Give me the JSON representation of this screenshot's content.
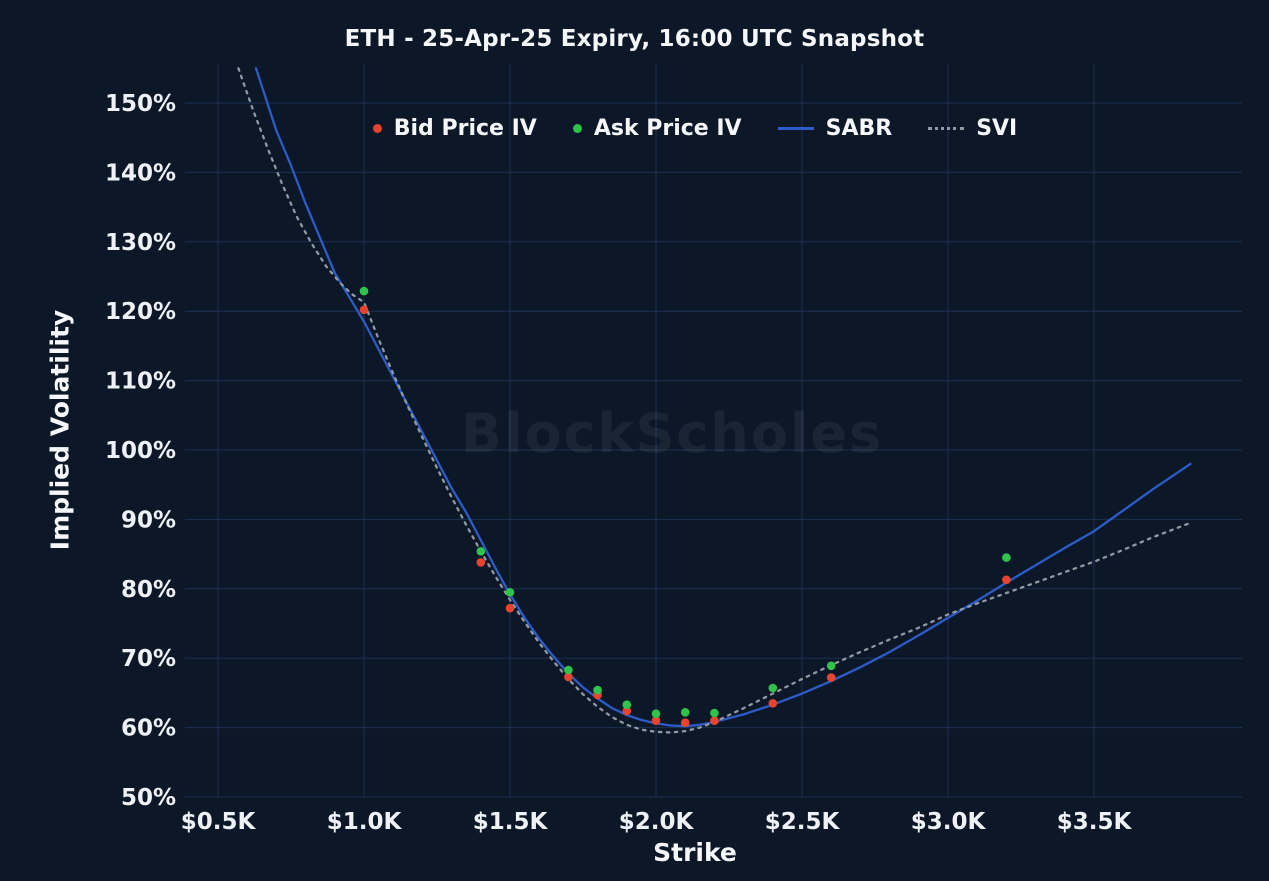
{
  "title": "ETH - 25-Apr-25 Expiry, 16:00 UTC Snapshot",
  "watermark": "BlockScholes",
  "axes": {
    "x_label": "Strike",
    "y_label": "Implied Volatility"
  },
  "colors": {
    "background": "#0c1828",
    "grid": "#1d3152",
    "bid": "#e8432e",
    "ask": "#2fc34b",
    "sabr": "#2d5cc8",
    "svi": "#9198a1",
    "text": "#f5f7fa",
    "watermark": "#ffffff"
  },
  "chart_data": {
    "type": "scatter",
    "title": "ETH - 25-Apr-25 Expiry, 16:00 UTC Snapshot",
    "xlabel": "Strike",
    "ylabel": "Implied Volatility",
    "xlim": [
      0.39,
      3.95
    ],
    "ylim": [
      50,
      155
    ],
    "grid": true,
    "legend_position": "top",
    "x_ticks": [
      {
        "value": 0.5,
        "label": "$0.5K"
      },
      {
        "value": 1.0,
        "label": "$1.0K"
      },
      {
        "value": 1.5,
        "label": "$1.5K"
      },
      {
        "value": 2.0,
        "label": "$2.0K"
      },
      {
        "value": 2.5,
        "label": "$2.5K"
      },
      {
        "value": 3.0,
        "label": "$3.0K"
      },
      {
        "value": 3.5,
        "label": "$3.5K"
      }
    ],
    "y_ticks": [
      {
        "value": 50,
        "label": "50%"
      },
      {
        "value": 60,
        "label": "60%"
      },
      {
        "value": 70,
        "label": "70%"
      },
      {
        "value": 80,
        "label": "80%"
      },
      {
        "value": 90,
        "label": "90%"
      },
      {
        "value": 100,
        "label": "100%"
      },
      {
        "value": 110,
        "label": "110%"
      },
      {
        "value": 120,
        "label": "120%"
      },
      {
        "value": 130,
        "label": "130%"
      },
      {
        "value": 140,
        "label": "140%"
      },
      {
        "value": 150,
        "label": "150%"
      }
    ],
    "series": [
      {
        "name": "Bid Price IV",
        "type": "scatter",
        "color": "#e8432e",
        "points": [
          [
            1.0,
            120.2
          ],
          [
            1.4,
            83.8
          ],
          [
            1.5,
            77.2
          ],
          [
            1.7,
            67.3
          ],
          [
            1.8,
            64.7
          ],
          [
            1.9,
            62.4
          ],
          [
            2.0,
            61.0
          ],
          [
            2.1,
            60.7
          ],
          [
            2.2,
            61.0
          ],
          [
            2.4,
            63.5
          ],
          [
            2.6,
            67.2
          ],
          [
            3.2,
            81.3
          ]
        ]
      },
      {
        "name": "Ask Price IV",
        "type": "scatter",
        "color": "#2fc34b",
        "points": [
          [
            1.0,
            122.9
          ],
          [
            1.4,
            85.4
          ],
          [
            1.5,
            79.5
          ],
          [
            1.7,
            68.3
          ],
          [
            1.8,
            65.4
          ],
          [
            1.9,
            63.3
          ],
          [
            2.0,
            62.0
          ],
          [
            2.1,
            62.2
          ],
          [
            2.2,
            62.1
          ],
          [
            2.4,
            65.7
          ],
          [
            2.6,
            68.9
          ],
          [
            3.2,
            84.5
          ]
        ]
      },
      {
        "name": "SABR",
        "type": "line",
        "color": "#2d5cc8",
        "points": [
          [
            0.63,
            155
          ],
          [
            0.7,
            146
          ],
          [
            0.75,
            141
          ],
          [
            0.8,
            135.5
          ],
          [
            0.85,
            130.5
          ],
          [
            0.9,
            125.5
          ],
          [
            0.95,
            122
          ],
          [
            1.0,
            118.5
          ],
          [
            1.05,
            114.5
          ],
          [
            1.1,
            110.5
          ],
          [
            1.15,
            106.5
          ],
          [
            1.2,
            102.5
          ],
          [
            1.25,
            98.5
          ],
          [
            1.3,
            94.5
          ],
          [
            1.35,
            91
          ],
          [
            1.4,
            87
          ],
          [
            1.45,
            83
          ],
          [
            1.5,
            79.2
          ],
          [
            1.55,
            75.8
          ],
          [
            1.6,
            72.8
          ],
          [
            1.65,
            70.2
          ],
          [
            1.7,
            67.8
          ],
          [
            1.75,
            65.8
          ],
          [
            1.8,
            64.2
          ],
          [
            1.85,
            62.8
          ],
          [
            1.9,
            61.8
          ],
          [
            1.95,
            61.1
          ],
          [
            2.0,
            60.6
          ],
          [
            2.05,
            60.3
          ],
          [
            2.1,
            60.2
          ],
          [
            2.15,
            60.4
          ],
          [
            2.2,
            60.8
          ],
          [
            2.3,
            61.9
          ],
          [
            2.4,
            63.3
          ],
          [
            2.5,
            64.9
          ],
          [
            2.6,
            66.7
          ],
          [
            2.7,
            68.7
          ],
          [
            2.8,
            70.9
          ],
          [
            2.9,
            73.3
          ],
          [
            3.0,
            75.8
          ],
          [
            3.1,
            78.3
          ],
          [
            3.2,
            80.9
          ],
          [
            3.3,
            83.4
          ],
          [
            3.4,
            85.9
          ],
          [
            3.5,
            88.3
          ],
          [
            3.6,
            91.3
          ],
          [
            3.7,
            94.3
          ],
          [
            3.83,
            98.0
          ]
        ]
      },
      {
        "name": "SVI",
        "type": "dotted-line",
        "color": "#9198a1",
        "points": [
          [
            0.57,
            155
          ],
          [
            0.62,
            149
          ],
          [
            0.67,
            143.5
          ],
          [
            0.72,
            138.3
          ],
          [
            0.77,
            133.6
          ],
          [
            0.82,
            129.8
          ],
          [
            0.87,
            126.5
          ],
          [
            0.92,
            124
          ],
          [
            0.96,
            122.4
          ],
          [
            1.0,
            121.3
          ],
          [
            1.05,
            116
          ],
          [
            1.1,
            111
          ],
          [
            1.15,
            106.3
          ],
          [
            1.2,
            101.8
          ],
          [
            1.25,
            97.4
          ],
          [
            1.3,
            93.2
          ],
          [
            1.35,
            89.2
          ],
          [
            1.4,
            85.4
          ],
          [
            1.45,
            81.8
          ],
          [
            1.5,
            78.4
          ],
          [
            1.55,
            75.2
          ],
          [
            1.6,
            72.2
          ],
          [
            1.65,
            69.5
          ],
          [
            1.7,
            67
          ],
          [
            1.75,
            64.8
          ],
          [
            1.8,
            63
          ],
          [
            1.85,
            61.5
          ],
          [
            1.9,
            60.4
          ],
          [
            1.95,
            59.7
          ],
          [
            2.0,
            59.4
          ],
          [
            2.05,
            59.3
          ],
          [
            2.1,
            59.5
          ],
          [
            2.15,
            60
          ],
          [
            2.2,
            60.8
          ],
          [
            2.3,
            62.8
          ],
          [
            2.4,
            64.9
          ],
          [
            2.5,
            67
          ],
          [
            2.6,
            69
          ],
          [
            2.7,
            70.9
          ],
          [
            2.8,
            72.7
          ],
          [
            2.9,
            74.4
          ],
          [
            3.0,
            76.3
          ],
          [
            3.1,
            77.9
          ],
          [
            3.2,
            79.4
          ],
          [
            3.3,
            80.9
          ],
          [
            3.4,
            82.4
          ],
          [
            3.5,
            83.9
          ],
          [
            3.6,
            85.6
          ],
          [
            3.7,
            87.4
          ],
          [
            3.83,
            89.5
          ]
        ]
      }
    ]
  }
}
